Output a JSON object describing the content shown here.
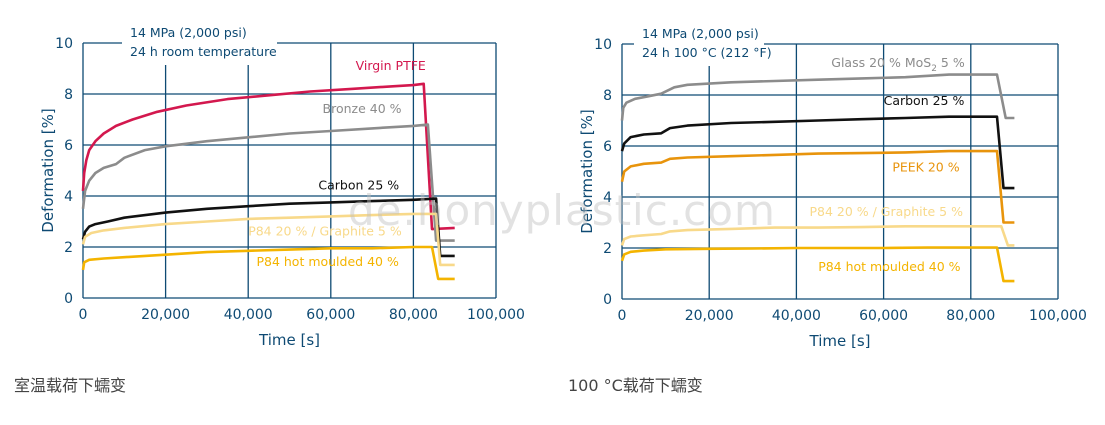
{
  "colors": {
    "axis": "#0e4a73",
    "grid": "#0e4a73",
    "virgin_ptfe": "#d3184e",
    "bronze": "#8c8c8c",
    "glass": "#8c8c8c",
    "carbon": "#111111",
    "peek": "#e8940c",
    "p84_graphite": "#f8d98a",
    "p84_hot": "#f4b400"
  },
  "captions": {
    "left": "室温载荷下蠕变",
    "right": "100 °C载荷下蠕变"
  },
  "watermark": "de.honyplastic.com",
  "chart_data": [
    {
      "type": "line",
      "xlabel": "Time [s]",
      "ylabel": "Deformation [%]",
      "xlim": [
        0,
        100000
      ],
      "ylim": [
        0,
        10
      ],
      "x_ticks": [
        0,
        20000,
        40000,
        60000,
        80000,
        100000
      ],
      "x_tick_labels": [
        "0",
        "20,000",
        "40,000",
        "60,000",
        "80,000",
        "100,000"
      ],
      "y_ticks": [
        0,
        2,
        4,
        6,
        8,
        10
      ],
      "y_tick_labels": [
        "0",
        "2",
        "4",
        "6",
        "8",
        "10"
      ],
      "grid": true,
      "annotation": [
        "14 MPa (2,000 psi)",
        "24 h room temperature"
      ],
      "series": [
        {
          "name": "Virgin PTFE",
          "color_key": "virgin_ptfe",
          "points": [
            [
              0,
              4.2
            ],
            [
              300,
              4.9
            ],
            [
              800,
              5.4
            ],
            [
              1500,
              5.8
            ],
            [
              3000,
              6.15
            ],
            [
              5000,
              6.45
            ],
            [
              8000,
              6.75
            ],
            [
              12000,
              7.0
            ],
            [
              18000,
              7.3
            ],
            [
              25000,
              7.55
            ],
            [
              35000,
              7.8
            ],
            [
              45000,
              7.95
            ],
            [
              55000,
              8.1
            ],
            [
              65000,
              8.2
            ],
            [
              75000,
              8.3
            ],
            [
              80000,
              8.35
            ],
            [
              82500,
              8.4
            ],
            [
              84500,
              2.7
            ],
            [
              90000,
              2.75
            ]
          ]
        },
        {
          "name": "Bronze 40 %",
          "color_key": "bronze",
          "points": [
            [
              0,
              3.5
            ],
            [
              500,
              4.2
            ],
            [
              1500,
              4.6
            ],
            [
              3000,
              4.9
            ],
            [
              5000,
              5.1
            ],
            [
              7000,
              5.2
            ],
            [
              8000,
              5.25
            ],
            [
              10000,
              5.5
            ],
            [
              15000,
              5.8
            ],
            [
              20000,
              5.95
            ],
            [
              30000,
              6.15
            ],
            [
              40000,
              6.3
            ],
            [
              50000,
              6.45
            ],
            [
              60000,
              6.55
            ],
            [
              70000,
              6.65
            ],
            [
              80000,
              6.75
            ],
            [
              83500,
              6.8
            ],
            [
              85500,
              2.25
            ],
            [
              90000,
              2.25
            ]
          ]
        },
        {
          "name": "Carbon 25 %",
          "color_key": "carbon",
          "points": [
            [
              0,
              2.3
            ],
            [
              500,
              2.6
            ],
            [
              1500,
              2.8
            ],
            [
              3000,
              2.9
            ],
            [
              6000,
              3.0
            ],
            [
              10000,
              3.15
            ],
            [
              20000,
              3.35
            ],
            [
              30000,
              3.5
            ],
            [
              40000,
              3.6
            ],
            [
              50000,
              3.7
            ],
            [
              60000,
              3.75
            ],
            [
              70000,
              3.8
            ],
            [
              80000,
              3.85
            ],
            [
              85500,
              3.9
            ],
            [
              86500,
              1.65
            ],
            [
              90000,
              1.65
            ]
          ]
        },
        {
          "name": "P84 20 % / Graphite 5 %",
          "color_key": "p84_graphite",
          "points": [
            [
              0,
              2.1
            ],
            [
              500,
              2.4
            ],
            [
              2000,
              2.55
            ],
            [
              5000,
              2.65
            ],
            [
              10000,
              2.75
            ],
            [
              20000,
              2.9
            ],
            [
              30000,
              3.0
            ],
            [
              40000,
              3.1
            ],
            [
              50000,
              3.15
            ],
            [
              60000,
              3.2
            ],
            [
              70000,
              3.25
            ],
            [
              80000,
              3.3
            ],
            [
              85500,
              3.3
            ],
            [
              86500,
              1.3
            ],
            [
              90000,
              1.3
            ]
          ]
        },
        {
          "name": "P84 hot moulded 40 %",
          "color_key": "p84_hot",
          "points": [
            [
              0,
              1.1
            ],
            [
              300,
              1.4
            ],
            [
              1500,
              1.5
            ],
            [
              5000,
              1.55
            ],
            [
              10000,
              1.6
            ],
            [
              20000,
              1.7
            ],
            [
              30000,
              1.8
            ],
            [
              40000,
              1.85
            ],
            [
              50000,
              1.9
            ],
            [
              60000,
              1.95
            ],
            [
              70000,
              1.95
            ],
            [
              80000,
              2.0
            ],
            [
              84500,
              2.0
            ],
            [
              86000,
              0.75
            ],
            [
              90000,
              0.75
            ]
          ]
        }
      ],
      "series_labels": [
        {
          "text": "Virgin PTFE",
          "color_key": "virgin_ptfe",
          "x": 66000,
          "y": 8.95
        },
        {
          "text": "Bronze 40 %",
          "color_key": "bronze",
          "x": 58000,
          "y": 7.25
        },
        {
          "text": "Carbon 25 %",
          "color_key": "carbon",
          "x": 57000,
          "y": 4.25
        },
        {
          "text": "P84 20 % / Graphite 5 %",
          "color_key": "p84_graphite",
          "x": 40000,
          "y": 2.45
        },
        {
          "text": "P84 hot moulded 40 %",
          "color_key": "p84_hot",
          "x": 42000,
          "y": 1.25
        }
      ]
    },
    {
      "type": "line",
      "xlabel": "Time [s]",
      "ylabel": "Deformation [%]",
      "xlim": [
        0,
        100000
      ],
      "ylim": [
        0,
        10
      ],
      "x_ticks": [
        0,
        20000,
        40000,
        60000,
        80000,
        100000
      ],
      "x_tick_labels": [
        "0",
        "20,000",
        "40,000",
        "60,000",
        "80,000",
        "100,000"
      ],
      "y_ticks": [
        0,
        2,
        4,
        6,
        8,
        10
      ],
      "y_tick_labels": [
        "0",
        "2",
        "4",
        "6",
        "8",
        "10"
      ],
      "grid": true,
      "annotation": [
        "14 MPa (2,000 psi)",
        "24 h 100 °C (212 °F)"
      ],
      "series": [
        {
          "name": "Glass 20 % MoS2 5 %",
          "color_key": "glass",
          "points": [
            [
              0,
              7.0
            ],
            [
              300,
              7.5
            ],
            [
              1000,
              7.7
            ],
            [
              3000,
              7.85
            ],
            [
              6000,
              7.95
            ],
            [
              9000,
              8.05
            ],
            [
              12000,
              8.3
            ],
            [
              15000,
              8.4
            ],
            [
              25000,
              8.5
            ],
            [
              35000,
              8.55
            ],
            [
              45000,
              8.6
            ],
            [
              55000,
              8.65
            ],
            [
              65000,
              8.7
            ],
            [
              75000,
              8.8
            ],
            [
              86000,
              8.8
            ],
            [
              88000,
              7.1
            ],
            [
              90000,
              7.1
            ]
          ]
        },
        {
          "name": "Carbon 25 %",
          "color_key": "carbon",
          "points": [
            [
              0,
              5.8
            ],
            [
              500,
              6.1
            ],
            [
              2000,
              6.35
            ],
            [
              5000,
              6.45
            ],
            [
              9000,
              6.5
            ],
            [
              11000,
              6.7
            ],
            [
              15000,
              6.8
            ],
            [
              25000,
              6.9
            ],
            [
              35000,
              6.95
            ],
            [
              45000,
              7.0
            ],
            [
              55000,
              7.05
            ],
            [
              65000,
              7.1
            ],
            [
              75000,
              7.15
            ],
            [
              86000,
              7.15
            ],
            [
              87500,
              4.35
            ],
            [
              90000,
              4.35
            ]
          ]
        },
        {
          "name": "PEEK 20 %",
          "color_key": "peek",
          "points": [
            [
              0,
              4.6
            ],
            [
              500,
              5.0
            ],
            [
              2000,
              5.2
            ],
            [
              5000,
              5.3
            ],
            [
              9000,
              5.35
            ],
            [
              11000,
              5.5
            ],
            [
              15000,
              5.55
            ],
            [
              25000,
              5.6
            ],
            [
              35000,
              5.65
            ],
            [
              45000,
              5.7
            ],
            [
              55000,
              5.72
            ],
            [
              65000,
              5.75
            ],
            [
              75000,
              5.8
            ],
            [
              86000,
              5.8
            ],
            [
              87500,
              3.0
            ],
            [
              90000,
              3.0
            ]
          ]
        },
        {
          "name": "P84 20 % / Graphite 5 %",
          "color_key": "p84_graphite",
          "points": [
            [
              0,
              2.1
            ],
            [
              500,
              2.35
            ],
            [
              2000,
              2.45
            ],
            [
              5000,
              2.5
            ],
            [
              9000,
              2.55
            ],
            [
              11000,
              2.65
            ],
            [
              15000,
              2.7
            ],
            [
              25000,
              2.75
            ],
            [
              35000,
              2.8
            ],
            [
              45000,
              2.8
            ],
            [
              55000,
              2.82
            ],
            [
              65000,
              2.85
            ],
            [
              75000,
              2.85
            ],
            [
              87000,
              2.85
            ],
            [
              88500,
              2.1
            ],
            [
              90000,
              2.1
            ]
          ]
        },
        {
          "name": "P84 hot moulded 40 %",
          "color_key": "p84_hot",
          "points": [
            [
              0,
              1.5
            ],
            [
              500,
              1.75
            ],
            [
              2000,
              1.85
            ],
            [
              5000,
              1.9
            ],
            [
              10000,
              1.95
            ],
            [
              20000,
              1.97
            ],
            [
              30000,
              1.98
            ],
            [
              40000,
              2.0
            ],
            [
              50000,
              2.0
            ],
            [
              60000,
              2.0
            ],
            [
              70000,
              2.02
            ],
            [
              86000,
              2.02
            ],
            [
              87500,
              0.7
            ],
            [
              90000,
              0.7
            ]
          ]
        }
      ],
      "series_labels": [
        {
          "text": "Glass 20 % MoS",
          "sub": "2",
          "rest": " 5 %",
          "color_key": "glass",
          "x": 48000,
          "y": 9.1
        },
        {
          "text": "Carbon 25 %",
          "color_key": "carbon",
          "x": 60000,
          "y": 7.6
        },
        {
          "text": "PEEK 20 %",
          "color_key": "peek",
          "x": 62000,
          "y": 5.0
        },
        {
          "text": "P84 20 % / Graphite 5 %",
          "color_key": "p84_graphite",
          "x": 43000,
          "y": 3.25
        },
        {
          "text": "P84 hot moulded 40 %",
          "color_key": "p84_hot",
          "x": 45000,
          "y": 1.1
        }
      ]
    }
  ]
}
